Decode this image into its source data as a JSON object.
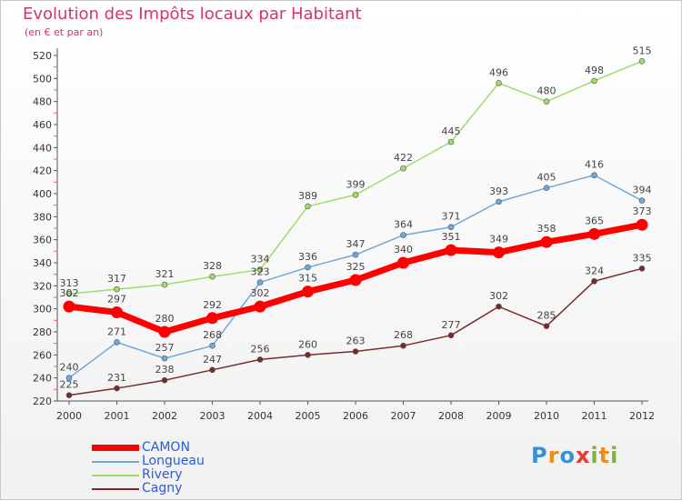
{
  "header": {
    "title": "Evolution des Impôts locaux par Habitant",
    "subtitle": "(en € et par an)"
  },
  "logo": {
    "text": "Proxiti",
    "colors": [
      "#3a8fd6",
      "#f08c1e",
      "#3a8fd6",
      "#e53935",
      "#7cb342",
      "#f08c1e",
      "#7cb342"
    ]
  },
  "chart_data": {
    "type": "line",
    "title": "Evolution des Impôts locaux par Habitant",
    "subtitle": "(en € et par an)",
    "x": [
      "2000",
      "2001",
      "2002",
      "2003",
      "2004",
      "2005",
      "2006",
      "2007",
      "2008",
      "2009",
      "2010",
      "2011",
      "2012"
    ],
    "ylim": [
      220,
      520
    ],
    "yticks": [
      220,
      240,
      260,
      280,
      300,
      320,
      340,
      360,
      380,
      400,
      420,
      440,
      460,
      480,
      500,
      520
    ],
    "grid": false,
    "legend_position": "bottom-left",
    "series": [
      {
        "name": "CAMON",
        "color": "#ff0000",
        "values": [
          302,
          297,
          280,
          292,
          302,
          315,
          325,
          340,
          351,
          349,
          358,
          365,
          373
        ]
      },
      {
        "name": "Longueau",
        "color": "#6fa8dc",
        "values": [
          240,
          271,
          257,
          268,
          323,
          336,
          347,
          364,
          371,
          393,
          405,
          416,
          394
        ]
      },
      {
        "name": "Rivery",
        "color": "#9edc6a",
        "values": [
          313,
          317,
          321,
          328,
          334,
          389,
          399,
          422,
          445,
          496,
          480,
          498,
          515
        ]
      },
      {
        "name": "Cagny",
        "color": "#7b2a2a",
        "values": [
          225,
          231,
          238,
          247,
          256,
          260,
          263,
          268,
          277,
          302,
          285,
          324,
          335
        ]
      }
    ]
  }
}
